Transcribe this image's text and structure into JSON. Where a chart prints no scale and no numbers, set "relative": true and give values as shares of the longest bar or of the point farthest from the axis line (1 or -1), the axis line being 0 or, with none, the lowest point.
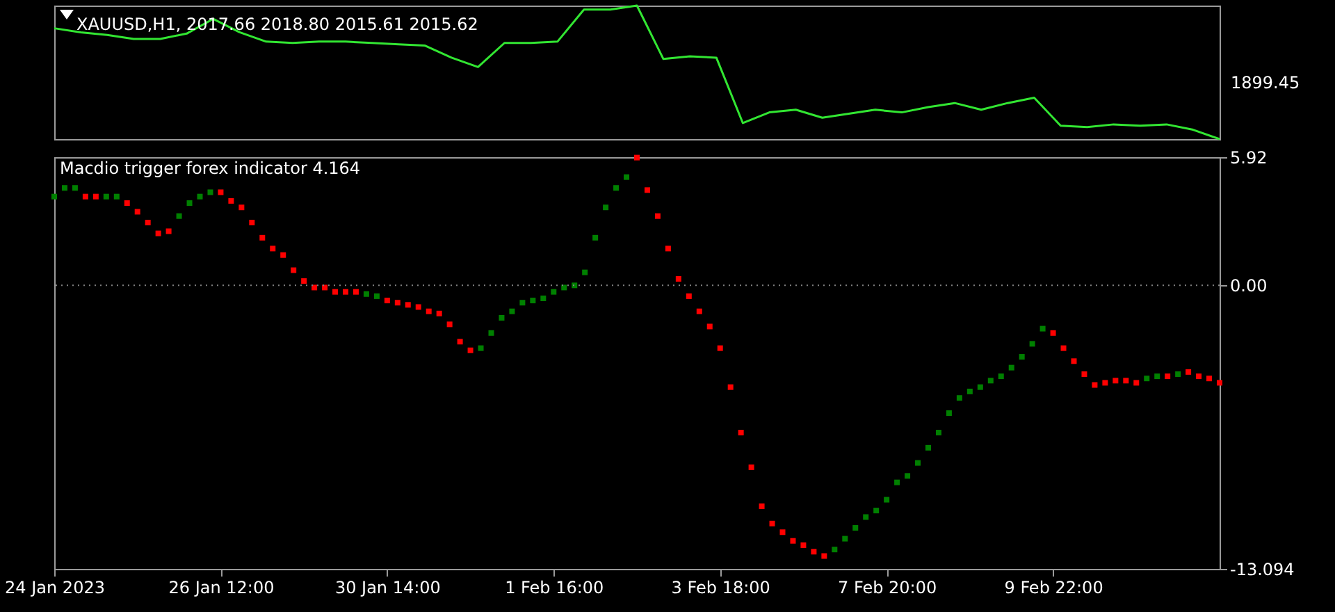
{
  "chart_data": [
    {
      "type": "line",
      "title": "XAUUSD,H1, 2017.66 2018.80 2015.61 2015.62",
      "relative": true,
      "categories": [
        null,
        null,
        null,
        null,
        null,
        null,
        null,
        null,
        null,
        null,
        null,
        null,
        null,
        null,
        null,
        null,
        null,
        null,
        null,
        null,
        null,
        null,
        null,
        null,
        null,
        null,
        null,
        null,
        null,
        null,
        null,
        null,
        null,
        null,
        null,
        null,
        null,
        null,
        null,
        null,
        null,
        null,
        null,
        null,
        null
      ],
      "series": [
        {
          "color": "#32e632",
          "values": [
            0.83,
            0.8,
            0.78,
            0.75,
            0.75,
            0.79,
            0.9,
            0.8,
            0.73,
            0.72,
            0.73,
            0.73,
            0.72,
            0.71,
            0.7,
            0.61,
            0.54,
            0.72,
            0.72,
            0.73,
            0.97,
            0.97,
            1.0,
            0.6,
            0.62,
            0.61,
            0.12,
            0.2,
            0.22,
            0.16,
            0.19,
            0.22,
            0.2,
            0.24,
            0.27,
            0.22,
            0.27,
            0.31,
            0.1,
            0.09,
            0.11,
            0.1,
            0.11,
            0.07,
            0.0
          ]
        }
      ],
      "annotations": [
        "1899.45"
      ]
    },
    {
      "type": "scatter",
      "title": "Macdio trigger forex indicator 4.164",
      "marker": "square",
      "categories": [
        "24 Jan 2023",
        null,
        null,
        null,
        null,
        null,
        null,
        null,
        null,
        null,
        null,
        null,
        null,
        null,
        null,
        null,
        "26 Jan 12:00",
        null,
        null,
        null,
        null,
        null,
        null,
        null,
        null,
        null,
        null,
        null,
        null,
        null,
        null,
        null,
        "30 Jan 14:00",
        null,
        null,
        null,
        null,
        null,
        null,
        null,
        null,
        null,
        null,
        null,
        null,
        null,
        null,
        null,
        "1 Feb 16:00",
        null,
        null,
        null,
        null,
        null,
        null,
        null,
        null,
        null,
        null,
        null,
        null,
        null,
        null,
        null,
        "3 Feb 18:00",
        null,
        null,
        null,
        null,
        null,
        null,
        null,
        null,
        null,
        null,
        null,
        null,
        null,
        null,
        null,
        "7 Feb 20:00",
        null,
        null,
        null,
        null,
        null,
        null,
        null,
        null,
        null,
        null,
        null,
        null,
        null,
        null,
        null,
        "9 Feb 22:00",
        null,
        null,
        null,
        null,
        null,
        null,
        null,
        null,
        null,
        null,
        null,
        null,
        null,
        null,
        null,
        null
      ],
      "ylim": [
        -13.094,
        5.92
      ],
      "yticks": [
        5.92,
        {
          "value": 0,
          "label": "0.00"
        },
        -13.094
      ],
      "ref_lines": [
        {
          "axis": "y",
          "value": 0,
          "color": "#808080",
          "line_style": "dotted"
        }
      ],
      "series": [
        {
          "color": "#008000",
          "values": [
            4.1,
            4.5,
            4.5,
            null,
            null,
            4.1,
            4.1,
            null,
            null,
            null,
            null,
            null,
            3.2,
            3.8,
            4.1,
            4.3,
            null,
            null,
            null,
            null,
            null,
            null,
            null,
            null,
            null,
            null,
            null,
            null,
            null,
            null,
            -0.4,
            -0.5,
            null,
            null,
            null,
            null,
            null,
            null,
            null,
            null,
            null,
            -2.9,
            -2.2,
            -1.5,
            -1.2,
            -0.8,
            -0.7,
            -0.6,
            -0.3,
            -0.1,
            0.0,
            0.6,
            2.2,
            3.6,
            4.5,
            5.0,
            null,
            null,
            null,
            null,
            null,
            null,
            null,
            null,
            null,
            null,
            null,
            null,
            null,
            null,
            null,
            null,
            null,
            null,
            null,
            -12.2,
            -11.7,
            -11.2,
            -10.7,
            -10.4,
            -9.9,
            -9.1,
            -8.8,
            -8.2,
            -7.5,
            -6.8,
            -5.9,
            -5.2,
            -4.9,
            -4.7,
            -4.4,
            -4.2,
            -3.8,
            -3.3,
            -2.7,
            -2.0,
            null,
            null,
            null,
            null,
            null,
            null,
            null,
            null,
            null,
            -4.3,
            -4.2,
            null,
            -4.1,
            null,
            null,
            null,
            null
          ]
        },
        {
          "color": "#ff0000",
          "values": [
            null,
            null,
            null,
            4.1,
            4.1,
            null,
            null,
            3.8,
            3.4,
            2.9,
            2.4,
            2.5,
            null,
            null,
            null,
            null,
            4.3,
            3.9,
            3.6,
            2.9,
            2.2,
            1.7,
            1.4,
            0.7,
            0.2,
            -0.1,
            -0.1,
            -0.3,
            -0.3,
            -0.3,
            null,
            null,
            -0.7,
            -0.8,
            -0.9,
            -1.0,
            -1.2,
            -1.3,
            -1.8,
            -2.6,
            -3.0,
            null,
            null,
            null,
            null,
            null,
            null,
            null,
            null,
            null,
            null,
            null,
            null,
            null,
            null,
            null,
            5.9,
            4.4,
            3.2,
            1.7,
            0.3,
            -0.5,
            -1.2,
            -1.9,
            -2.9,
            -4.7,
            -6.8,
            -8.4,
            -10.2,
            -11.0,
            -11.4,
            -11.8,
            -12.0,
            -12.3,
            -12.5,
            null,
            null,
            null,
            null,
            null,
            null,
            null,
            null,
            null,
            null,
            null,
            null,
            null,
            null,
            null,
            null,
            null,
            null,
            null,
            null,
            null,
            -2.2,
            -2.9,
            -3.5,
            -4.1,
            -4.6,
            -4.5,
            -4.4,
            -4.4,
            -4.5,
            null,
            null,
            -4.2,
            null,
            -4.0,
            -4.2,
            -4.3,
            -4.5
          ]
        }
      ]
    }
  ]
}
